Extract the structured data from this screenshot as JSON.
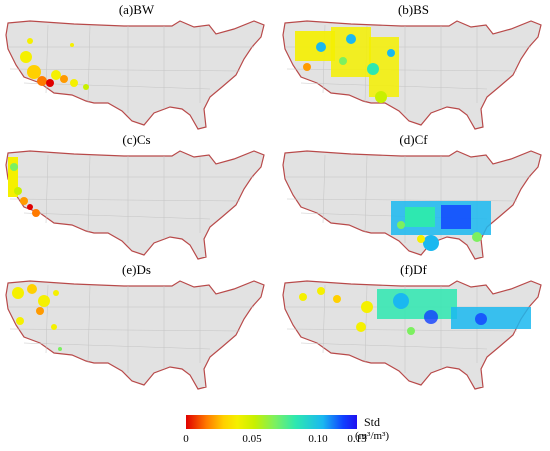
{
  "panels": [
    {
      "id": "BW",
      "title": "(a)BW"
    },
    {
      "id": "BS",
      "title": "(b)BS"
    },
    {
      "id": "Cs",
      "title": "(c)Cs"
    },
    {
      "id": "Cf",
      "title": "(d)Cf"
    },
    {
      "id": "Ds",
      "title": "(e)Ds"
    },
    {
      "id": "Df",
      "title": "(f)Df"
    }
  ],
  "legend": {
    "title": "Std",
    "unit": "(m³/m³)",
    "ticks": [
      "0",
      "0.05",
      "0.10",
      "0.13"
    ],
    "range": [
      0,
      0.13
    ]
  },
  "colors": {
    "land": "#e2e2e2",
    "coast": "#b84a4a",
    "state_lines": "#c4c4c4",
    "low": "#e00000",
    "mid_low": "#f5f000",
    "mid": "#7cf060",
    "high": "#1040ff"
  }
}
